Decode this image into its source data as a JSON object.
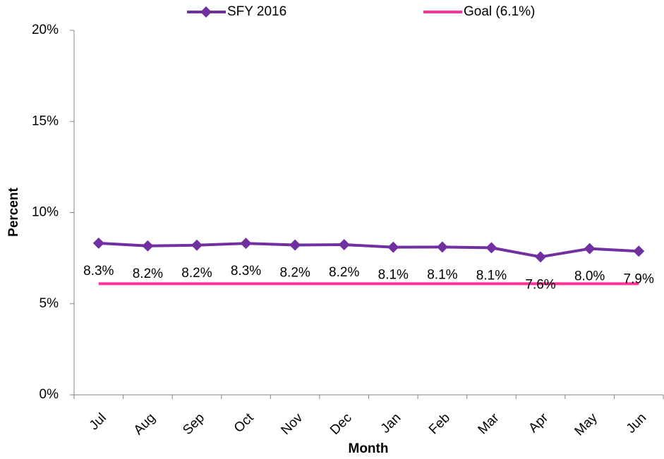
{
  "chart_data": {
    "type": "line",
    "x_label": "Month",
    "y_label": "Percent",
    "categories": [
      "Jul",
      "Aug",
      "Sep",
      "Oct",
      "Nov",
      "Dec",
      "Jan",
      "Feb",
      "Mar",
      "Apr",
      "May",
      "Jun"
    ],
    "series": [
      {
        "name": "SFY 2016",
        "color": "#7030a0",
        "marker": "diamond",
        "values": [
          8.32,
          8.17,
          8.21,
          8.31,
          8.22,
          8.24,
          8.1,
          8.11,
          8.07,
          7.57,
          8.02,
          7.88
        ],
        "value_labels": [
          "8.3%",
          "8.2%",
          "8.2%",
          "8.3%",
          "8.2%",
          "8.2%",
          "8.1%",
          "8.1%",
          "8.1%",
          "7.6%",
          "8.0%",
          "7.9%"
        ]
      },
      {
        "name": "Goal (6.1%)",
        "color": "#ff3399",
        "marker": "none",
        "values": [
          6.1,
          6.1,
          6.1,
          6.1,
          6.1,
          6.1,
          6.1,
          6.1,
          6.1,
          6.1,
          6.1,
          6.1
        ]
      }
    ],
    "ylim": [
      0,
      20
    ],
    "yticks": [
      {
        "value": 0,
        "label": "0%"
      },
      {
        "value": 5,
        "label": "5%"
      },
      {
        "value": 10,
        "label": "10%"
      },
      {
        "value": 15,
        "label": "15%"
      },
      {
        "value": 20,
        "label": "20%"
      }
    ],
    "grid": false,
    "legend": "top"
  }
}
